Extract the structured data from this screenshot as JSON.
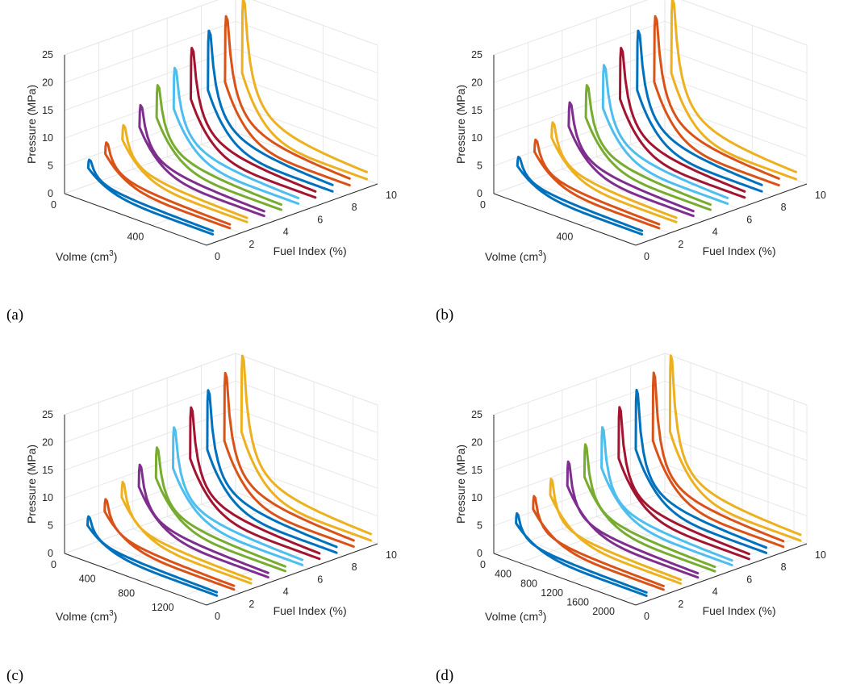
{
  "series_colors": [
    "#0072BD",
    "#D95319",
    "#EDB120",
    "#7E2F8E",
    "#77AC30",
    "#4DBEEE",
    "#A2142F",
    "#0072BD",
    "#D95319",
    "#EDB120"
  ],
  "chart_data": [
    {
      "type": "line",
      "panel_label": "(a)",
      "title": "",
      "xlabel": "Volme (cm",
      "xlabel_sup": "3",
      "xlabel_close": ")",
      "ylabel": "Fuel Index (%)",
      "zlabel": "Pressure (MPa)",
      "xlim": [
        0,
        650
      ],
      "ylim": [
        0,
        10
      ],
      "zlim": [
        0,
        25
      ],
      "xticks": [
        0,
        400
      ],
      "xtick_labels": [
        "0",
        "400"
      ],
      "yticks": [
        0,
        2,
        4,
        6,
        8,
        10
      ],
      "ytick_labels": [
        "0",
        "2",
        "4",
        "6",
        "8",
        "10"
      ],
      "zticks": [
        0,
        5,
        10,
        15,
        20,
        25
      ],
      "ztick_labels": [
        "0",
        "5",
        "10",
        "15",
        "20",
        "25"
      ],
      "grid": true,
      "series": [
        {
          "fuel_index": 1,
          "peak_pressure_mpa": 5.5,
          "vmin": 30,
          "vmax": 600
        },
        {
          "fuel_index": 2,
          "peak_pressure_mpa": 7.5,
          "vmin": 30,
          "vmax": 600
        },
        {
          "fuel_index": 3,
          "peak_pressure_mpa": 9.5,
          "vmin": 30,
          "vmax": 600
        },
        {
          "fuel_index": 4,
          "peak_pressure_mpa": 12,
          "vmin": 30,
          "vmax": 600
        },
        {
          "fuel_index": 5,
          "peak_pressure_mpa": 14.5,
          "vmin": 30,
          "vmax": 600
        },
        {
          "fuel_index": 6,
          "peak_pressure_mpa": 16.5,
          "vmin": 30,
          "vmax": 600
        },
        {
          "fuel_index": 7,
          "peak_pressure_mpa": 19,
          "vmin": 30,
          "vmax": 600
        },
        {
          "fuel_index": 8,
          "peak_pressure_mpa": 21,
          "vmin": 30,
          "vmax": 600
        },
        {
          "fuel_index": 9,
          "peak_pressure_mpa": 22.5,
          "vmin": 30,
          "vmax": 600
        },
        {
          "fuel_index": 10,
          "peak_pressure_mpa": 24.5,
          "vmin": 30,
          "vmax": 600
        }
      ]
    },
    {
      "type": "line",
      "panel_label": "(b)",
      "title": "",
      "xlabel": "Volme (cm",
      "xlabel_sup": "3",
      "xlabel_close": ")",
      "ylabel": "Fuel Index (%)",
      "zlabel": "Pressure (MPa)",
      "xlim": [
        0,
        650
      ],
      "ylim": [
        0,
        10
      ],
      "zlim": [
        0,
        25
      ],
      "xticks": [
        0,
        400
      ],
      "xtick_labels": [
        "0",
        "400"
      ],
      "yticks": [
        0,
        2,
        4,
        6,
        8,
        10
      ],
      "ytick_labels": [
        "0",
        "2",
        "4",
        "6",
        "8",
        "10"
      ],
      "zticks": [
        0,
        5,
        10,
        15,
        20,
        25
      ],
      "ztick_labels": [
        "0",
        "5",
        "10",
        "15",
        "20",
        "25"
      ],
      "grid": true,
      "series": [
        {
          "fuel_index": 1,
          "peak_pressure_mpa": 6,
          "vmin": 30,
          "vmax": 600
        },
        {
          "fuel_index": 2,
          "peak_pressure_mpa": 8,
          "vmin": 30,
          "vmax": 600
        },
        {
          "fuel_index": 3,
          "peak_pressure_mpa": 10,
          "vmin": 30,
          "vmax": 600
        },
        {
          "fuel_index": 4,
          "peak_pressure_mpa": 12.5,
          "vmin": 30,
          "vmax": 600
        },
        {
          "fuel_index": 5,
          "peak_pressure_mpa": 14.5,
          "vmin": 30,
          "vmax": 600
        },
        {
          "fuel_index": 6,
          "peak_pressure_mpa": 17,
          "vmin": 30,
          "vmax": 600
        },
        {
          "fuel_index": 7,
          "peak_pressure_mpa": 19,
          "vmin": 30,
          "vmax": 600
        },
        {
          "fuel_index": 8,
          "peak_pressure_mpa": 21,
          "vmin": 30,
          "vmax": 600
        },
        {
          "fuel_index": 9,
          "peak_pressure_mpa": 22.5,
          "vmin": 30,
          "vmax": 600
        },
        {
          "fuel_index": 10,
          "peak_pressure_mpa": 24.5,
          "vmin": 30,
          "vmax": 600
        }
      ]
    },
    {
      "type": "line",
      "panel_label": "(c)",
      "title": "",
      "xlabel": "Volme (cm",
      "xlabel_sup": "3",
      "xlabel_close": ")",
      "ylabel": "Fuel Index (%)",
      "zlabel": "Pressure (MPa)",
      "xlim": [
        0,
        1450
      ],
      "ylim": [
        0,
        10
      ],
      "zlim": [
        0,
        25
      ],
      "xticks": [
        0,
        400,
        800,
        1200
      ],
      "xtick_labels": [
        "0",
        "400",
        "800",
        "1200"
      ],
      "yticks": [
        0,
        2,
        4,
        6,
        8,
        10
      ],
      "ytick_labels": [
        "0",
        "2",
        "4",
        "6",
        "8",
        "10"
      ],
      "zticks": [
        0,
        5,
        10,
        15,
        20,
        25
      ],
      "ztick_labels": [
        "0",
        "5",
        "10",
        "15",
        "20",
        "25"
      ],
      "grid": true,
      "series": [
        {
          "fuel_index": 1,
          "peak_pressure_mpa": 6,
          "vmin": 60,
          "vmax": 1380
        },
        {
          "fuel_index": 2,
          "peak_pressure_mpa": 8,
          "vmin": 60,
          "vmax": 1380
        },
        {
          "fuel_index": 3,
          "peak_pressure_mpa": 10,
          "vmin": 60,
          "vmax": 1380
        },
        {
          "fuel_index": 4,
          "peak_pressure_mpa": 12,
          "vmin": 60,
          "vmax": 1380
        },
        {
          "fuel_index": 5,
          "peak_pressure_mpa": 14,
          "vmin": 60,
          "vmax": 1380
        },
        {
          "fuel_index": 6,
          "peak_pressure_mpa": 16.5,
          "vmin": 60,
          "vmax": 1380
        },
        {
          "fuel_index": 7,
          "peak_pressure_mpa": 19,
          "vmin": 60,
          "vmax": 1380
        },
        {
          "fuel_index": 8,
          "peak_pressure_mpa": 21,
          "vmin": 60,
          "vmax": 1380
        },
        {
          "fuel_index": 9,
          "peak_pressure_mpa": 23,
          "vmin": 60,
          "vmax": 1380
        },
        {
          "fuel_index": 10,
          "peak_pressure_mpa": 25,
          "vmin": 60,
          "vmax": 1380
        }
      ]
    },
    {
      "type": "line",
      "panel_label": "(d)",
      "title": "",
      "xlabel": "Volme (cm",
      "xlabel_sup": "3",
      "xlabel_close": ")",
      "ylabel": "Fuel Index (%)",
      "zlabel": "Pressure (MPa)",
      "xlim": [
        0,
        2200
      ],
      "ylim": [
        0,
        10
      ],
      "zlim": [
        0,
        25
      ],
      "xticks": [
        0,
        400,
        800,
        1200,
        1600,
        2000
      ],
      "xtick_labels": [
        "0",
        "400",
        "800",
        "1200",
        "1600",
        "2000"
      ],
      "yticks": [
        0,
        2,
        4,
        6,
        8,
        10
      ],
      "ytick_labels": [
        "0",
        "2",
        "4",
        "6",
        "8",
        "10"
      ],
      "zticks": [
        0,
        5,
        10,
        15,
        20,
        25
      ],
      "ztick_labels": [
        "0",
        "5",
        "10",
        "15",
        "20",
        "25"
      ],
      "grid": true,
      "series": [
        {
          "fuel_index": 1,
          "peak_pressure_mpa": 6.5,
          "vmin": 80,
          "vmax": 2100
        },
        {
          "fuel_index": 2,
          "peak_pressure_mpa": 8.5,
          "vmin": 80,
          "vmax": 2100
        },
        {
          "fuel_index": 3,
          "peak_pressure_mpa": 10.5,
          "vmin": 80,
          "vmax": 2100
        },
        {
          "fuel_index": 4,
          "peak_pressure_mpa": 12.5,
          "vmin": 80,
          "vmax": 2100
        },
        {
          "fuel_index": 5,
          "peak_pressure_mpa": 14.5,
          "vmin": 80,
          "vmax": 2100
        },
        {
          "fuel_index": 6,
          "peak_pressure_mpa": 16.5,
          "vmin": 80,
          "vmax": 2100
        },
        {
          "fuel_index": 7,
          "peak_pressure_mpa": 19,
          "vmin": 80,
          "vmax": 2100
        },
        {
          "fuel_index": 8,
          "peak_pressure_mpa": 21,
          "vmin": 80,
          "vmax": 2100
        },
        {
          "fuel_index": 9,
          "peak_pressure_mpa": 23,
          "vmin": 80,
          "vmax": 2100
        },
        {
          "fuel_index": 10,
          "peak_pressure_mpa": 25,
          "vmin": 80,
          "vmax": 2100
        }
      ]
    }
  ]
}
